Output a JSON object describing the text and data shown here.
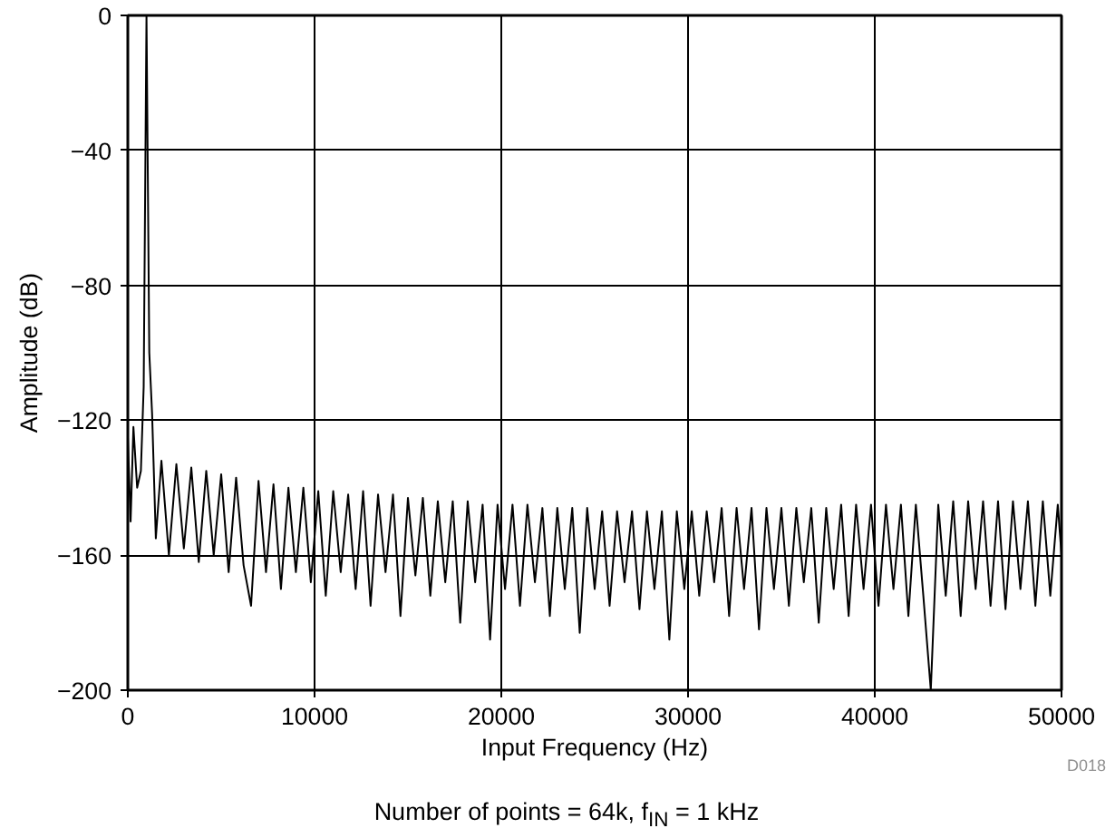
{
  "chart_data": {
    "type": "line",
    "xlabel": "Input Frequency (Hz)",
    "ylabel": "Amplitude (dB)",
    "xlim": [
      0,
      50000
    ],
    "ylim": [
      -200,
      0
    ],
    "xticks": [
      0,
      10000,
      20000,
      30000,
      40000,
      50000
    ],
    "yticks": [
      -200,
      -160,
      -120,
      -80,
      -40,
      0
    ],
    "grid": true,
    "line_style": "solid",
    "annotations": [
      "D018",
      "Number of points = 64k, f$_{IN}$ = 1 kHz"
    ],
    "x": [
      0,
      150,
      300,
      500,
      700,
      850,
      1000,
      1150,
      1300,
      1500,
      1800,
      2200,
      2600,
      3000,
      3400,
      3800,
      4200,
      4600,
      5000,
      5400,
      5800,
      6200,
      6600,
      7000,
      7400,
      7800,
      8200,
      8600,
      9000,
      9400,
      9800,
      10200,
      10600,
      11000,
      11400,
      11800,
      12200,
      12600,
      13000,
      13400,
      13800,
      14200,
      14600,
      15000,
      15400,
      15800,
      16200,
      16600,
      17000,
      17400,
      17800,
      18200,
      18600,
      19000,
      19400,
      19800,
      20200,
      20600,
      21000,
      21400,
      21800,
      22200,
      22600,
      23000,
      23400,
      23800,
      24200,
      24600,
      25000,
      25400,
      25800,
      26200,
      26600,
      27000,
      27400,
      27800,
      28200,
      28600,
      29000,
      29400,
      29800,
      30200,
      30600,
      31000,
      31400,
      31800,
      32200,
      32600,
      33000,
      33400,
      33800,
      34200,
      34600,
      35000,
      35400,
      35800,
      36200,
      36600,
      37000,
      37400,
      37800,
      38200,
      38600,
      39000,
      39400,
      39800,
      40200,
      40600,
      41000,
      41400,
      41800,
      42200,
      42600,
      43000,
      43400,
      43800,
      44200,
      44600,
      45000,
      45400,
      45800,
      46200,
      46600,
      47000,
      47400,
      47800,
      48200,
      48600,
      49000,
      49400,
      49800,
      50000
    ],
    "series": [
      {
        "color": "#000000",
        "values": [
          -125,
          -150,
          -122,
          -140,
          -135,
          -110,
          0,
          -100,
          -118,
          -155,
          -132,
          -160,
          -133,
          -158,
          -134,
          -162,
          -135,
          -160,
          -136,
          -165,
          -137,
          -163,
          -175,
          -138,
          -165,
          -139,
          -170,
          -140,
          -165,
          -140,
          -168,
          -141,
          -172,
          -141,
          -165,
          -142,
          -170,
          -141,
          -175,
          -142,
          -165,
          -142,
          -178,
          -143,
          -166,
          -143,
          -172,
          -144,
          -168,
          -144,
          -180,
          -144,
          -168,
          -145,
          -185,
          -145,
          -170,
          -145,
          -175,
          -145,
          -168,
          -146,
          -178,
          -146,
          -170,
          -146,
          -183,
          -146,
          -170,
          -147,
          -175,
          -147,
          -168,
          -147,
          -176,
          -147,
          -170,
          -147,
          -185,
          -147,
          -170,
          -147,
          -172,
          -147,
          -168,
          -146,
          -178,
          -146,
          -170,
          -146,
          -182,
          -146,
          -170,
          -146,
          -175,
          -146,
          -168,
          -146,
          -180,
          -146,
          -170,
          -145,
          -178,
          -145,
          -170,
          -145,
          -175,
          -145,
          -170,
          -145,
          -178,
          -145,
          -172,
          -200,
          -145,
          -172,
          -144,
          -178,
          -144,
          -170,
          -144,
          -175,
          -144,
          -176,
          -144,
          -170,
          -144,
          -175,
          -144,
          -172,
          -145,
          -160
        ]
      }
    ]
  }
}
